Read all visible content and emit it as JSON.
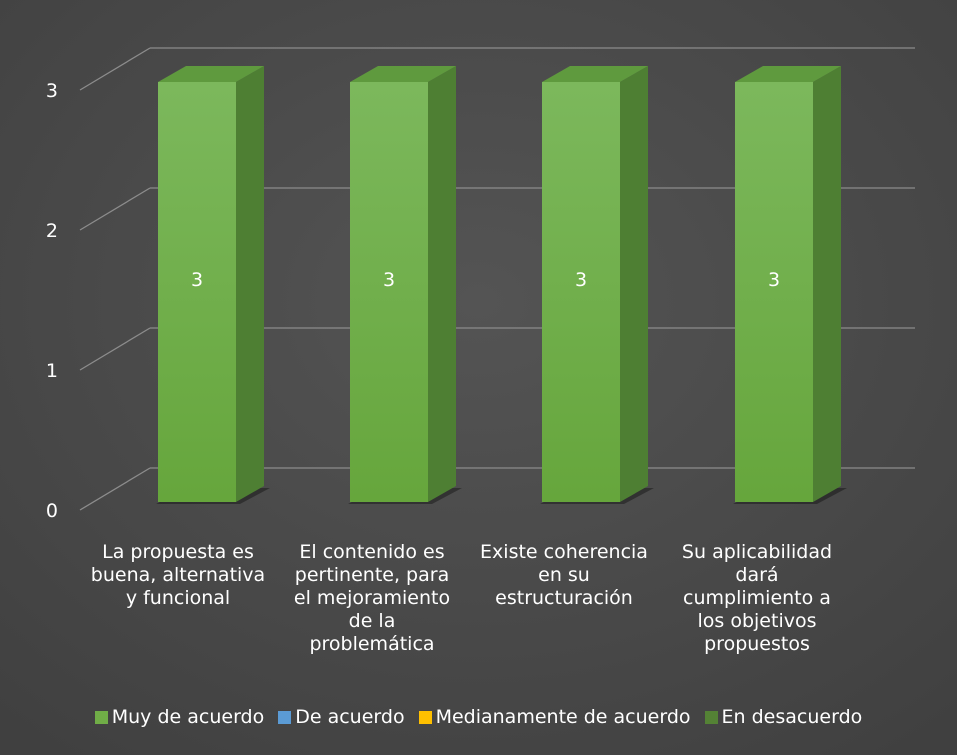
{
  "chart_data": {
    "type": "bar",
    "categories": [
      "La propuesta es buena, alternativa y funcional",
      "El contenido es pertinente, para el mejoramiento de la problemática",
      "Existe coherencia en su estructuración",
      "Su aplicabilidad dará cumplimiento a los objetivos propuestos"
    ],
    "category_lines": [
      [
        "La propuesta es",
        "buena, alternativa",
        "y funcional"
      ],
      [
        "El contenido es",
        "pertinente, para",
        "el mejoramiento",
        "de la",
        "problemática"
      ],
      [
        "Existe coherencia",
        "en su",
        "estructuración"
      ],
      [
        "Su aplicabilidad",
        "dará",
        "cumplimiento a",
        "los objetivos",
        "propuestos"
      ]
    ],
    "series": [
      {
        "name": "Muy de acuerdo",
        "values": [
          3,
          3,
          3,
          3
        ],
        "color": "#70ad47"
      },
      {
        "name": "De acuerdo",
        "values": [
          0,
          0,
          0,
          0
        ],
        "color": "#5b9bd5"
      },
      {
        "name": "Medianamente de acuerdo",
        "values": [
          0,
          0,
          0,
          0
        ],
        "color": "#ffc000"
      },
      {
        "name": "En desacuerdo",
        "values": [
          0,
          0,
          0,
          0
        ],
        "color": "#548235"
      }
    ],
    "data_labels": [
      "3",
      "3",
      "3",
      "3"
    ],
    "yticks": [
      "0",
      "1",
      "2",
      "3"
    ],
    "ylim": [
      0,
      3
    ],
    "grid": true,
    "legend_position": "bottom",
    "style": "3d-column",
    "background": "#404040"
  }
}
